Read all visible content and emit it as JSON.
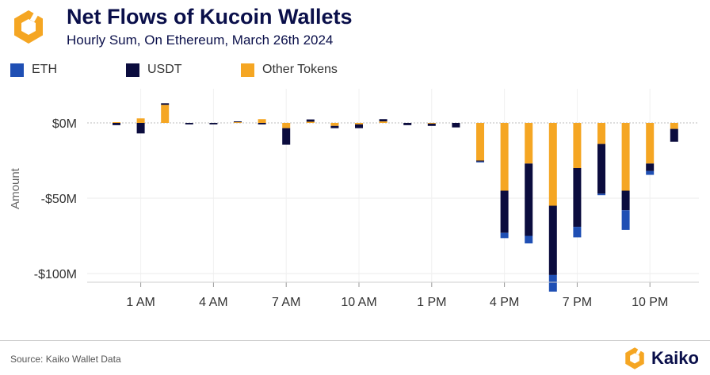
{
  "header": {
    "title": "Net Flows of Kucoin Wallets",
    "subtitle": "Hourly Sum, On Ethereum, March 26th 2024"
  },
  "footer": {
    "source": "Source: Kaiko Wallet Data",
    "brand": "Kaiko"
  },
  "colors": {
    "eth": "#1f4fb4",
    "usdt": "#0b0c3e",
    "other": "#f5a623",
    "brand_dark": "#0a0f4a"
  },
  "chart_data": {
    "type": "bar",
    "stacked": true,
    "ylabel": "Amount",
    "ylim": [
      -105,
      20
    ],
    "yticks": [
      {
        "value": 0,
        "label": "$0M"
      },
      {
        "value": -50,
        "label": "-$50M"
      },
      {
        "value": -100,
        "label": "-$100M"
      }
    ],
    "xticks": [
      {
        "hour": 1,
        "label": "1 AM"
      },
      {
        "hour": 4,
        "label": "4 AM"
      },
      {
        "hour": 7,
        "label": "7 AM"
      },
      {
        "hour": 10,
        "label": "10 AM"
      },
      {
        "hour": 13,
        "label": "1 PM"
      },
      {
        "hour": 16,
        "label": "4 PM"
      },
      {
        "hour": 19,
        "label": "7 PM"
      },
      {
        "hour": 22,
        "label": "10 PM"
      }
    ],
    "grid": true,
    "legend_position": "top-left",
    "hours": [
      0,
      1,
      2,
      3,
      4,
      5,
      6,
      7,
      8,
      9,
      10,
      11,
      12,
      13,
      14,
      15,
      16,
      17,
      18,
      19,
      20,
      21,
      22,
      23
    ],
    "series": [
      {
        "name": "ETH",
        "color": "#1f4fb4",
        "values": [
          0,
          0,
          0,
          0,
          0,
          0,
          0,
          0,
          0,
          0,
          0,
          0,
          0,
          0,
          0,
          -0.3,
          -3.5,
          -5,
          -11,
          -7,
          -1,
          -13,
          -2.5,
          0
        ]
      },
      {
        "name": "USDT",
        "color": "#0b0c3e",
        "values": [
          -1.5,
          -7,
          1,
          -1,
          -1,
          0.5,
          -1,
          -11,
          1.5,
          -1.5,
          -2.5,
          1.5,
          -1.5,
          -1.5,
          -3,
          -0.7,
          -28,
          -48,
          -46,
          -39,
          -33,
          -13,
          -5,
          -8.5
        ]
      },
      {
        "name": "Other Tokens",
        "color": "#f5a623",
        "values": [
          0.5,
          3,
          12,
          0,
          0,
          0.5,
          2.5,
          -3.5,
          0.8,
          -2,
          -1,
          1,
          0,
          -0.5,
          0,
          -25,
          -45,
          -27,
          -55,
          -30,
          -14,
          -45,
          -27,
          -4
        ]
      }
    ]
  }
}
